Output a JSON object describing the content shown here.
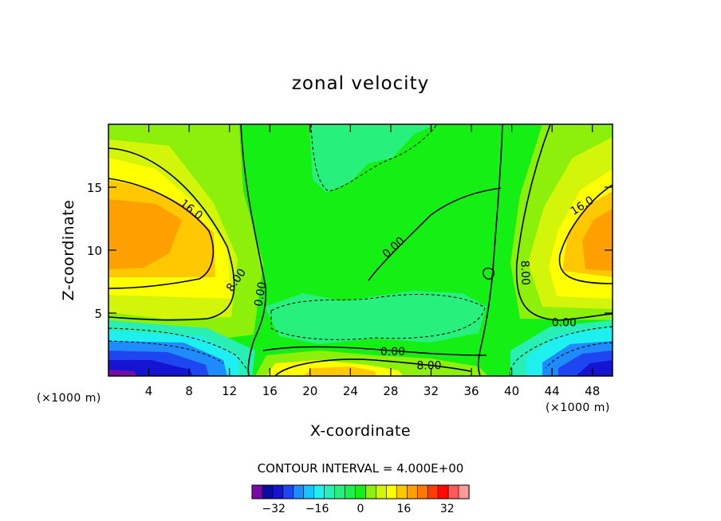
{
  "chart_data": {
    "type": "contour",
    "title": "zonal velocity",
    "xlabel": "X-coordinate",
    "ylabel": "Z-coordinate",
    "x_unit_label_left": "(×1000 m)",
    "x_unit_label_right": "(×1000 m)",
    "xlim": [
      0,
      50
    ],
    "ylim": [
      0,
      20
    ],
    "x_ticks": [
      4,
      8,
      12,
      16,
      20,
      24,
      28,
      32,
      36,
      40,
      44,
      48
    ],
    "y_ticks": [
      5,
      10,
      15
    ],
    "contour_interval_label": "CONTOUR INTERVAL = 4.000E+00",
    "contour_labels": [
      {
        "text": "16.0",
        "x": 8.2,
        "y": 13.2,
        "rotation": 38
      },
      {
        "text": "8.00",
        "x": 12.7,
        "y": 7.6,
        "rotation": -55
      },
      {
        "text": "0.00",
        "x": 15.1,
        "y": 6.5,
        "rotation": -80
      },
      {
        "text": "0.00",
        "x": 28.3,
        "y": 10.2,
        "rotation": -42
      },
      {
        "text": "8.00",
        "x": 41.3,
        "y": 8.2,
        "rotation": 88
      },
      {
        "text": "16.0",
        "x": 47.0,
        "y": 13.5,
        "rotation": -32
      },
      {
        "text": "0.00",
        "x": 45.2,
        "y": 4.2,
        "rotation": 0
      },
      {
        "text": "0.00",
        "x": 28.2,
        "y": 1.9,
        "rotation": 0
      },
      {
        "text": "8.00",
        "x": 31.8,
        "y": 0.8,
        "rotation": 0
      }
    ],
    "colorbar": {
      "levels": [
        -40,
        -36,
        -32,
        -28,
        -24,
        -20,
        -16,
        -12,
        -8,
        -4,
        0,
        4,
        8,
        12,
        16,
        20,
        24,
        28,
        32,
        36,
        40
      ],
      "tick_labels": [
        -32,
        -16,
        0,
        16,
        32
      ],
      "colors": [
        "#7a0aa8",
        "#0a0aa0",
        "#1414d2",
        "#1e46f0",
        "#1e8cff",
        "#14c8ff",
        "#1ef0f0",
        "#28f0b4",
        "#28f07d",
        "#1ef050",
        "#14f014",
        "#8cf00a",
        "#d2f50a",
        "#ffff00",
        "#ffc800",
        "#ffa000",
        "#ff7800",
        "#ff3c00",
        "#ff0a00",
        "#ff5a5a",
        "#ff9a9a"
      ]
    }
  }
}
